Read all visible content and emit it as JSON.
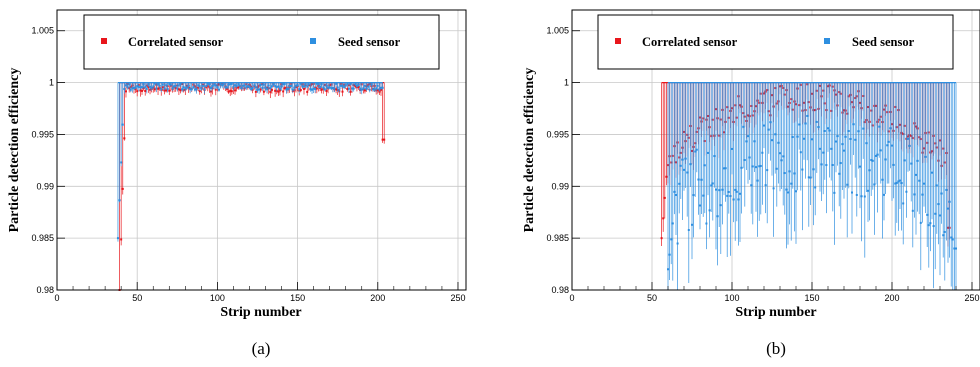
{
  "chart_data": [
    {
      "type": "scatter",
      "caption": "(a)",
      "title": "",
      "xlabel": "Strip number",
      "ylabel": "Particle detection efficiency",
      "xlim": [
        0,
        255
      ],
      "ylim": [
        0.98,
        1.007
      ],
      "xticks": [
        "0",
        "50",
        "100",
        "150",
        "200",
        "250"
      ],
      "yticks": [
        "0.98",
        "0.985",
        "0.99",
        "0.995",
        "1",
        "1.005"
      ],
      "grid": true,
      "legend": "top",
      "series": [
        {
          "name": "Correlated sensor",
          "color": "#e8161c",
          "x_range": [
            39,
            204
          ],
          "profile": "flat",
          "mean": 0.9995,
          "error": 0.0004,
          "edge_low": 0.98,
          "edge_high": 0.9945
        },
        {
          "name": "Seed sensor",
          "color": "#2e8fe0",
          "x_range": [
            38,
            203
          ],
          "profile": "flat",
          "mean": 0.9996,
          "error": 0.0003,
          "edge_low": 0.985,
          "edge_high": 0.9995
        }
      ]
    },
    {
      "type": "scatter",
      "caption": "(b)",
      "title": "",
      "xlabel": "Strip number",
      "ylabel": "Particle detection efficiency",
      "xlim": [
        0,
        255
      ],
      "ylim": [
        0.98,
        1.007
      ],
      "xticks": [
        "0",
        "50",
        "100",
        "150",
        "200",
        "250"
      ],
      "yticks": [
        "0.98",
        "0.985",
        "0.99",
        "0.995",
        "1",
        "1.005"
      ],
      "grid": true,
      "legend": "top",
      "series": [
        {
          "name": "Correlated sensor",
          "color": "#e8161c",
          "x_range": [
            56,
            236
          ],
          "profile": "dome",
          "mean": 0.9985,
          "error": 0.0015,
          "edge_low": 0.985,
          "edge_high": 0.986
        },
        {
          "name": "Seed sensor",
          "color": "#2e8fe0",
          "x_range": [
            60,
            240
          ],
          "profile": "dome",
          "mean": 0.9935,
          "error": 0.004,
          "edge_low": 0.982,
          "edge_high": 0.984
        }
      ]
    }
  ]
}
